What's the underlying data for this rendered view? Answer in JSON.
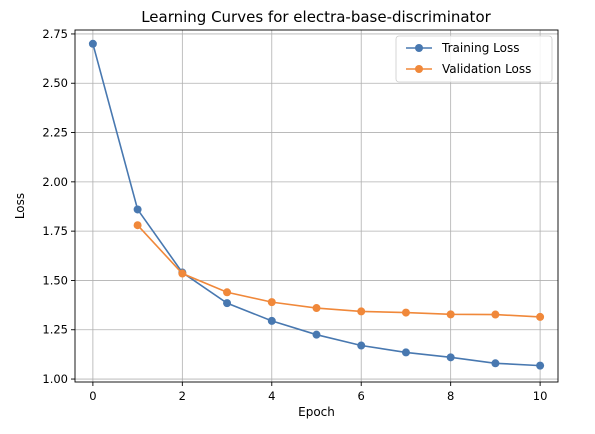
{
  "chart_data": {
    "type": "line",
    "title": "Learning Curves for electra-base-discriminator",
    "xlabel": "Epoch",
    "ylabel": "Loss",
    "xlim": [
      -0.4,
      10.4
    ],
    "ylim": [
      0.985,
      2.77
    ],
    "xticks": [
      0,
      2,
      4,
      6,
      8,
      10
    ],
    "yticks": [
      1.0,
      1.25,
      1.5,
      1.75,
      2.0,
      2.25,
      2.5,
      2.75
    ],
    "ytick_labels": [
      "1.00",
      "1.25",
      "1.50",
      "1.75",
      "2.00",
      "2.25",
      "2.50",
      "2.75"
    ],
    "grid": true,
    "legend_position": "top-right",
    "series": [
      {
        "name": "Training Loss",
        "color": "#4878b0",
        "x": [
          0,
          1,
          2,
          3,
          4,
          5,
          6,
          7,
          8,
          9,
          10
        ],
        "y": [
          2.7,
          1.86,
          1.54,
          1.385,
          1.295,
          1.225,
          1.17,
          1.135,
          1.11,
          1.08,
          1.068
        ]
      },
      {
        "name": "Validation Loss",
        "color": "#f0883a",
        "x": [
          1,
          2,
          3,
          4,
          5,
          6,
          7,
          8,
          9,
          10
        ],
        "y": [
          1.78,
          1.535,
          1.44,
          1.39,
          1.36,
          1.343,
          1.337,
          1.328,
          1.327,
          1.315
        ]
      }
    ]
  }
}
